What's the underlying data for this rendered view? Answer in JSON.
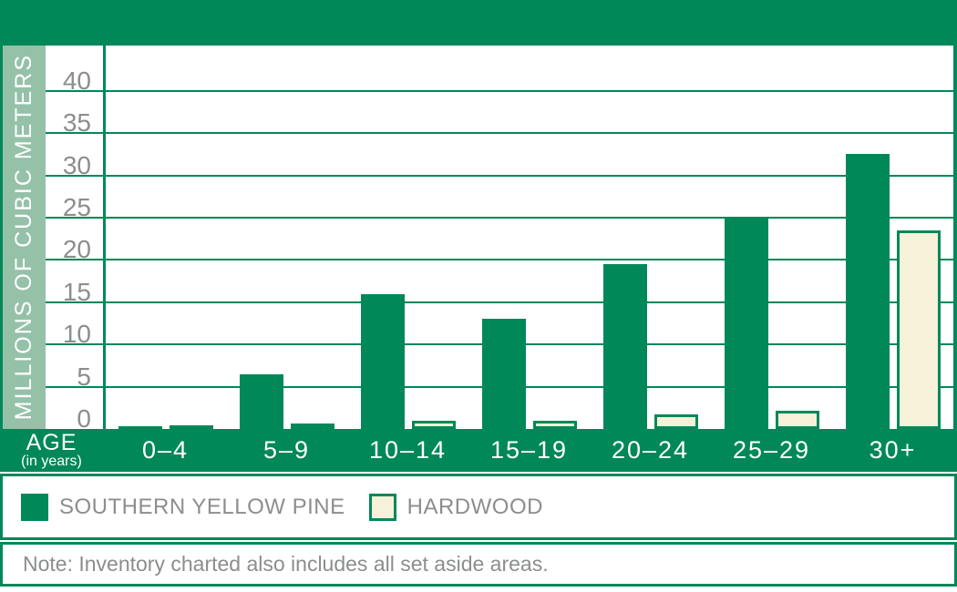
{
  "chart_data": {
    "type": "bar",
    "title": "",
    "ylabel": "MILLIONS OF CUBIC METERS",
    "x_axis_title": "AGE",
    "x_axis_subtitle": "(in years)",
    "categories": [
      "0–4",
      "5–9",
      "10–14",
      "15–19",
      "20–24",
      "25–29",
      "30+"
    ],
    "series": [
      {
        "name": "SOUTHERN YELLOW PINE",
        "swatch": "solid-green",
        "values": [
          0.3,
          6.5,
          16,
          13,
          19.5,
          25,
          32.5
        ]
      },
      {
        "name": "HARDWOOD",
        "swatch": "cream-outlined-green",
        "values": [
          0.4,
          0.7,
          1,
          1,
          1.7,
          2.2,
          23.5
        ]
      }
    ],
    "yticks": [
      0,
      5,
      10,
      15,
      20,
      25,
      30,
      35,
      40
    ],
    "ylim": [
      0,
      45
    ],
    "grid": true,
    "legend_position": "bottom",
    "units": "millions of cubic meters"
  },
  "note": "Note: Inventory charted also includes all set aside areas.",
  "colors": {
    "green": "#008859",
    "light_green": "#95C1A9",
    "cream": "#F6F1D9",
    "gray_text": "#8B8D8F",
    "white": "#FFFFFF"
  }
}
